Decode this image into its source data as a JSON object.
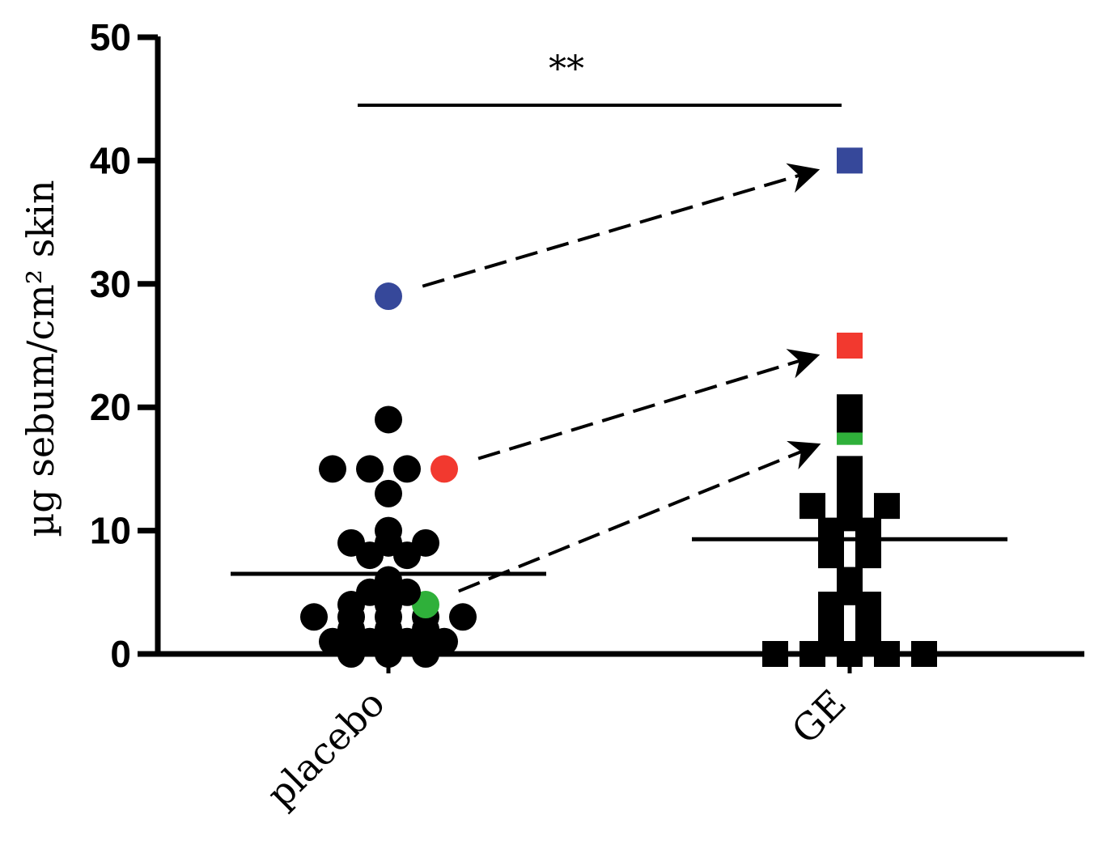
{
  "chart_data": {
    "type": "scatter",
    "ylabel": "µg sebum/cm² skin",
    "ylim": [
      0,
      50
    ],
    "yticks": [
      0,
      10,
      20,
      30,
      40,
      50
    ],
    "categories": [
      "placebo",
      "GE"
    ],
    "significance": {
      "label": "**",
      "between": [
        "placebo",
        "GE"
      ]
    },
    "series": [
      {
        "category": "placebo",
        "marker": "circle",
        "mean": 6.5,
        "values": [
          19,
          15,
          15,
          15,
          13,
          10,
          9,
          9,
          9,
          8,
          8,
          6,
          5,
          5,
          4,
          4,
          3,
          3,
          3,
          3,
          3,
          2,
          2,
          2,
          1,
          1,
          1,
          1,
          0,
          0,
          0,
          29,
          15,
          4
        ],
        "highlights": [
          {
            "value": 29,
            "color": "#36489a"
          },
          {
            "value": 15,
            "color": "#f2392f"
          },
          {
            "value": 4,
            "color": "#2fb03a"
          }
        ]
      },
      {
        "category": "GE",
        "marker": "square",
        "mean": 9.3,
        "values": [
          20,
          19,
          15,
          14,
          13,
          12,
          12,
          12,
          11,
          10,
          10,
          9,
          9,
          8,
          8,
          6,
          5,
          4,
          4,
          3,
          3,
          2,
          2,
          1,
          1,
          0,
          0,
          0,
          0,
          0,
          40,
          25,
          18
        ],
        "highlights": [
          {
            "value": 40,
            "color": "#36489a"
          },
          {
            "value": 25,
            "color": "#f2392f"
          },
          {
            "value": 18,
            "color": "#2fb03a"
          }
        ]
      }
    ],
    "arrows": [
      {
        "from_value": 29,
        "to_value": 40,
        "color": "#36489a"
      },
      {
        "from_value": 15,
        "to_value": 25,
        "color": "#f2392f"
      },
      {
        "from_value": 4,
        "to_value": 18,
        "color": "#2fb03a"
      }
    ]
  }
}
